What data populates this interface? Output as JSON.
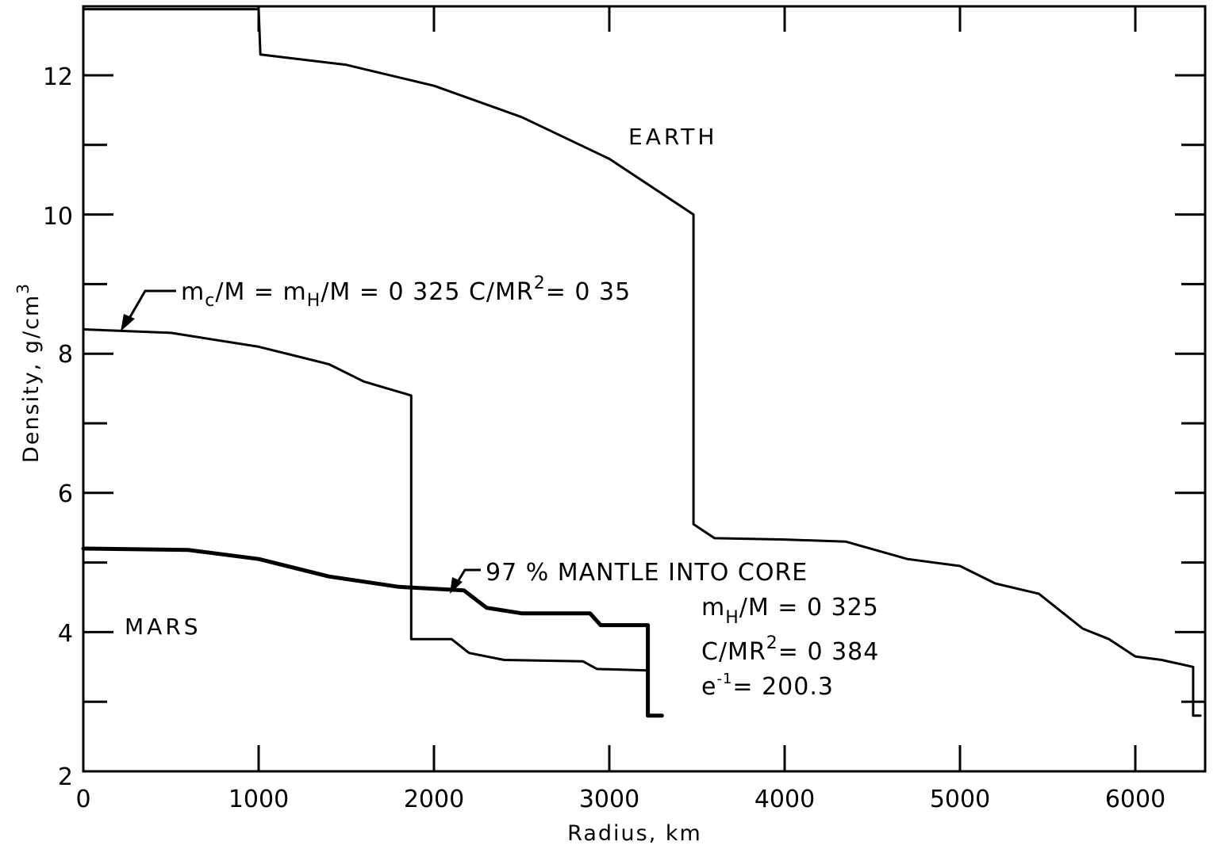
{
  "chart_data": {
    "type": "line",
    "title": "",
    "xlabel": "Radius,  km",
    "ylabel": "Density,  g/cm3",
    "xlim": [
      0,
      6400
    ],
    "ylim": [
      2,
      13
    ],
    "x_ticks": [
      "0",
      "1000",
      "2000",
      "3000",
      "4000",
      "5000",
      "6000"
    ],
    "y_ticks": [
      "2",
      "4",
      "6",
      "8",
      "10",
      "12"
    ],
    "grid": false,
    "series": [
      {
        "name": "EARTH",
        "label": "EARTH",
        "points": [
          [
            0,
            12.95
          ],
          [
            1000,
            12.95
          ],
          [
            1010,
            12.3
          ],
          [
            1500,
            12.15
          ],
          [
            2000,
            11.85
          ],
          [
            2500,
            11.4
          ],
          [
            3000,
            10.8
          ],
          [
            3480,
            10.0
          ],
          [
            3480,
            5.55
          ],
          [
            3600,
            5.35
          ],
          [
            4000,
            5.33
          ],
          [
            4350,
            5.3
          ],
          [
            4700,
            5.05
          ],
          [
            5000,
            4.95
          ],
          [
            5200,
            4.7
          ],
          [
            5450,
            4.55
          ],
          [
            5700,
            4.05
          ],
          [
            5850,
            3.9
          ],
          [
            6000,
            3.65
          ],
          [
            6150,
            3.6
          ],
          [
            6330,
            3.5
          ],
          [
            6330,
            2.8
          ],
          [
            6371,
            2.8
          ]
        ]
      },
      {
        "name": "MARS model mc/M = mH/M = 0.325, C/MR2 = 0.35",
        "label": "mc/M=mH/M=0 325  C/MR2=0 35",
        "points": [
          [
            0,
            8.35
          ],
          [
            500,
            8.3
          ],
          [
            1000,
            8.1
          ],
          [
            1400,
            7.85
          ],
          [
            1600,
            7.6
          ],
          [
            1870,
            7.4
          ],
          [
            1870,
            3.9
          ],
          [
            2100,
            3.9
          ],
          [
            2200,
            3.7
          ],
          [
            2400,
            3.6
          ],
          [
            2850,
            3.58
          ],
          [
            2930,
            3.47
          ],
          [
            3220,
            3.45
          ],
          [
            3220,
            2.8
          ],
          [
            3300,
            2.8
          ]
        ]
      },
      {
        "name": "MARS 97 % mantle into core",
        "label": "97 % MANTLE INTO CORE",
        "points": [
          [
            0,
            5.2
          ],
          [
            600,
            5.18
          ],
          [
            1000,
            5.05
          ],
          [
            1400,
            4.8
          ],
          [
            1800,
            4.65
          ],
          [
            2170,
            4.6
          ],
          [
            2300,
            4.35
          ],
          [
            2500,
            4.27
          ],
          [
            2890,
            4.27
          ],
          [
            2950,
            4.1
          ],
          [
            3220,
            4.1
          ],
          [
            3220,
            2.8
          ],
          [
            3300,
            2.8
          ]
        ]
      }
    ],
    "annotations": {
      "earth_label": "EARTH",
      "mars_label": "MARS",
      "model_a": {
        "text_prefix": "m",
        "text_c_sub": "c",
        "text_mid1": "/M = m",
        "text_h_sub": "H",
        "text_mid2": "/M = 0 325   C/MR",
        "text_sup": "2",
        "text_end": "= 0 35"
      },
      "model_b": {
        "title": "97 % MANTLE INTO CORE",
        "line1_prefix": "m",
        "line1_sub": "H",
        "line1_rest": "/M = 0 325",
        "line2_prefix": "C/MR",
        "line2_sup": "2",
        "line2_rest": "= 0 384",
        "line3_prefix": "e",
        "line3_sup": "-1",
        "line3_rest": "= 200.3"
      }
    }
  },
  "axes": {
    "x_title": "Radius,  km",
    "y_title_prefix": "Density,  g/cm",
    "y_title_sup": "3",
    "x_tick_labels": [
      "0",
      "1000",
      "2000",
      "3000",
      "4000",
      "5000",
      "6000"
    ],
    "y_tick_labels": [
      "2",
      "4",
      "6",
      "8",
      "10",
      "12"
    ]
  },
  "colors": {
    "line": "#000000",
    "background": "#ffffff"
  }
}
